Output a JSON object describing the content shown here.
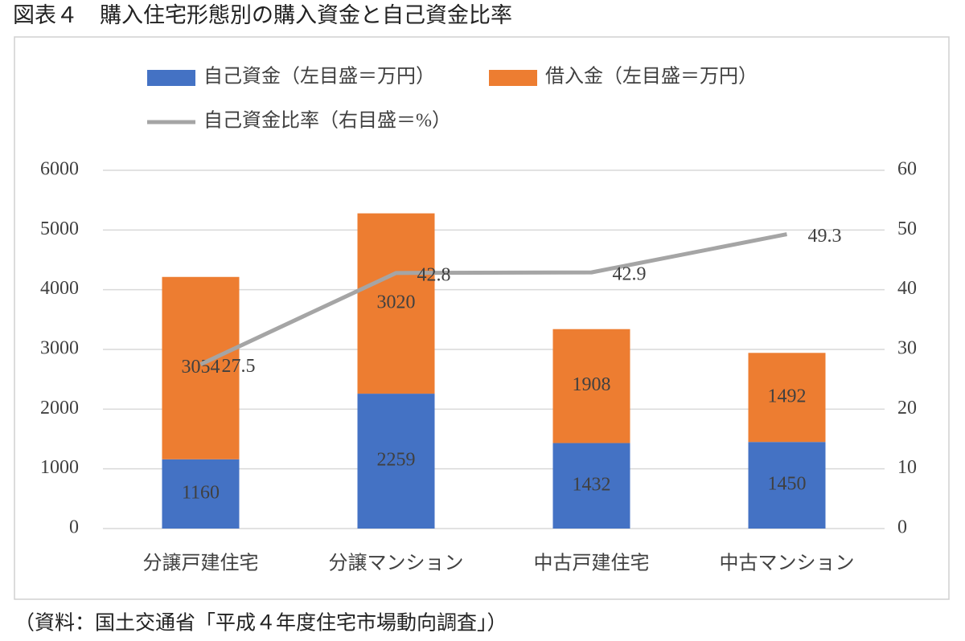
{
  "chart_data": {
    "type": "bar",
    "stacked": true,
    "title": "図表４　購入住宅形態別の購入資金と自己資金比率",
    "source": "（資料：国土交通省「平成４年度住宅市場動向調査」）",
    "categories": [
      "分譲戸建住宅",
      "分譲マンション",
      "中古戸建住宅",
      "中古マンション"
    ],
    "series": [
      {
        "name": "自己資金（左目盛＝万円）",
        "color": "#4472c4",
        "values": [
          1160,
          2259,
          1432,
          1450
        ]
      },
      {
        "name": "借入金（左目盛＝万円）",
        "color": "#ed7d31",
        "values": [
          3054,
          3020,
          1908,
          1492
        ]
      },
      {
        "name": "自己資金比率（右目盛＝%）",
        "color": "#a5a5a5",
        "type": "line",
        "axis": "y2",
        "values": [
          27.5,
          42.8,
          42.9,
          49.3
        ]
      }
    ],
    "ylim": [
      0,
      6000
    ],
    "yticks": [
      0,
      1000,
      2000,
      3000,
      4000,
      5000,
      6000
    ],
    "y2lim": [
      0,
      60
    ],
    "y2ticks": [
      0,
      10,
      20,
      30,
      40,
      50,
      60
    ],
    "grid": true,
    "legend": "top"
  }
}
